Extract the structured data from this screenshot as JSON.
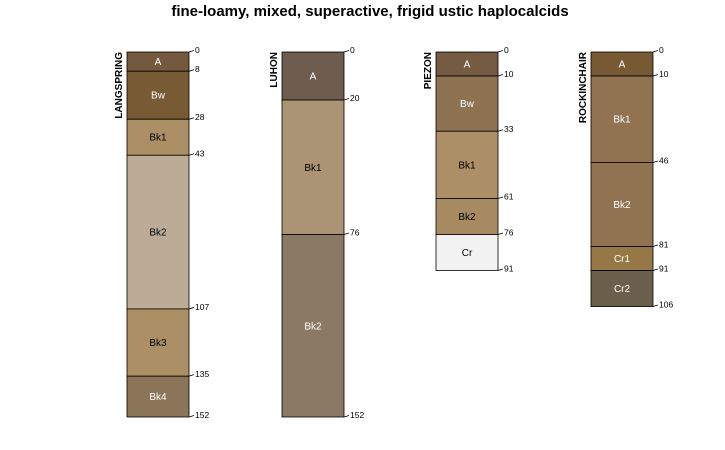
{
  "title": "fine-loamy, mixed, superactive, frigid ustic haplocalcids",
  "chart_data": {
    "type": "soil-profile-sketch",
    "depth_units": "cm",
    "max_depth": 152,
    "profiles": [
      {
        "name": "LANGSPRING",
        "horizons": [
          {
            "name": "A",
            "top": 0,
            "bottom": 8,
            "color": "#75593f"
          },
          {
            "name": "Bw",
            "top": 8,
            "bottom": 28,
            "color": "#785a34"
          },
          {
            "name": "Bk1",
            "top": 28,
            "bottom": 43,
            "color": "#ac8f65"
          },
          {
            "name": "Bk2",
            "top": 43,
            "bottom": 107,
            "color": "#bcac97"
          },
          {
            "name": "Bk3",
            "top": 107,
            "bottom": 135,
            "color": "#ac8f65"
          },
          {
            "name": "Bk4",
            "top": 135,
            "bottom": 152,
            "color": "#8b7559"
          }
        ],
        "depth_ticks": [
          "0",
          "8",
          "28",
          "43",
          "107",
          "135",
          "152"
        ]
      },
      {
        "name": "LUHON",
        "horizons": [
          {
            "name": "A",
            "top": 0,
            "bottom": 20,
            "color": "#6e5d4e"
          },
          {
            "name": "Bk1",
            "top": 20,
            "bottom": 76,
            "color": "#ab9474"
          },
          {
            "name": "Bk2",
            "top": 76,
            "bottom": 152,
            "color": "#8c7965"
          }
        ],
        "depth_ticks": [
          "0",
          "20",
          "76",
          "152"
        ]
      },
      {
        "name": "PIEZON",
        "horizons": [
          {
            "name": "A",
            "top": 0,
            "bottom": 10,
            "color": "#745b41"
          },
          {
            "name": "Bw",
            "top": 10,
            "bottom": 33,
            "color": "#8e7352"
          },
          {
            "name": "Bk1",
            "top": 33,
            "bottom": 61,
            "color": "#ad8f67"
          },
          {
            "name": "Bk2",
            "top": 61,
            "bottom": 76,
            "color": "#a78a62"
          },
          {
            "name": "Cr",
            "top": 76,
            "bottom": 91,
            "color": "#f2f2f2"
          }
        ],
        "depth_ticks": [
          "0",
          "10",
          "33",
          "61",
          "76",
          "91"
        ]
      },
      {
        "name": "ROCKINCHAIR",
        "horizons": [
          {
            "name": "A",
            "top": 0,
            "bottom": 10,
            "color": "#775a33"
          },
          {
            "name": "Bk1",
            "top": 10,
            "bottom": 46,
            "color": "#917351"
          },
          {
            "name": "Bk2",
            "top": 46,
            "bottom": 81,
            "color": "#917351"
          },
          {
            "name": "Cr1",
            "top": 81,
            "bottom": 91,
            "color": "#957845"
          },
          {
            "name": "Cr2",
            "top": 91,
            "bottom": 106,
            "color": "#6a5f4a"
          }
        ],
        "depth_ticks": [
          "0",
          "10",
          "46",
          "81",
          "91",
          "106"
        ]
      }
    ]
  }
}
